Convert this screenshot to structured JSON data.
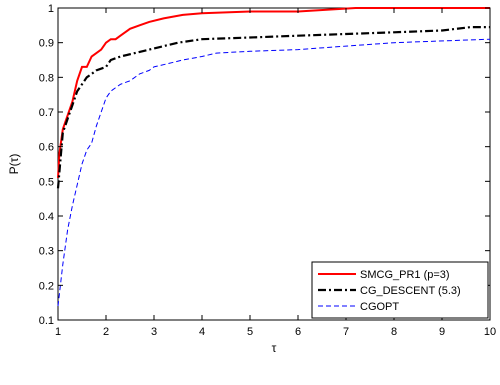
{
  "chart_data": {
    "type": "line",
    "xlabel": "τ",
    "ylabel": "P(τ)",
    "xlim": [
      1,
      10
    ],
    "ylim": [
      0.1,
      1.0
    ],
    "xticks": [
      1,
      2,
      3,
      4,
      5,
      6,
      7,
      8,
      9,
      10
    ],
    "yticks": [
      0.1,
      0.2,
      0.3,
      0.4,
      0.5,
      0.6,
      0.7,
      0.8,
      0.9,
      1
    ],
    "grid": false,
    "legend_position": "bottom-right",
    "series": [
      {
        "name": "SMCG_PR1 (p=3)",
        "color": "#ff0000",
        "style": "solid",
        "points": [
          [
            1,
            0.51
          ],
          [
            1.03,
            0.58
          ],
          [
            1.1,
            0.65
          ],
          [
            1.2,
            0.69
          ],
          [
            1.3,
            0.73
          ],
          [
            1.4,
            0.79
          ],
          [
            1.5,
            0.83
          ],
          [
            1.6,
            0.83
          ],
          [
            1.7,
            0.86
          ],
          [
            1.8,
            0.87
          ],
          [
            1.9,
            0.88
          ],
          [
            2.0,
            0.9
          ],
          [
            2.1,
            0.91
          ],
          [
            2.2,
            0.91
          ],
          [
            2.3,
            0.92
          ],
          [
            2.5,
            0.94
          ],
          [
            2.7,
            0.95
          ],
          [
            2.9,
            0.96
          ],
          [
            3.2,
            0.97
          ],
          [
            3.6,
            0.98
          ],
          [
            4.0,
            0.985
          ],
          [
            5.0,
            0.99
          ],
          [
            6.0,
            0.99
          ],
          [
            7.2,
            1.0
          ],
          [
            10,
            1.0
          ]
        ]
      },
      {
        "name": "CG_DESCENT (5.3)",
        "color": "#000000",
        "style": "dashdot",
        "points": [
          [
            1,
            0.48
          ],
          [
            1.05,
            0.56
          ],
          [
            1.1,
            0.64
          ],
          [
            1.2,
            0.68
          ],
          [
            1.3,
            0.72
          ],
          [
            1.4,
            0.76
          ],
          [
            1.5,
            0.78
          ],
          [
            1.6,
            0.8
          ],
          [
            1.7,
            0.81
          ],
          [
            1.8,
            0.82
          ],
          [
            2.0,
            0.83
          ],
          [
            2.1,
            0.85
          ],
          [
            2.3,
            0.86
          ],
          [
            2.6,
            0.87
          ],
          [
            2.9,
            0.88
          ],
          [
            3.2,
            0.89
          ],
          [
            3.5,
            0.9
          ],
          [
            4.0,
            0.91
          ],
          [
            5.0,
            0.915
          ],
          [
            6.0,
            0.92
          ],
          [
            7.0,
            0.925
          ],
          [
            8.0,
            0.93
          ],
          [
            9.0,
            0.935
          ],
          [
            9.3,
            0.94
          ],
          [
            9.6,
            0.945
          ],
          [
            10,
            0.945
          ]
        ]
      },
      {
        "name": "CGOPT",
        "color": "#0000ff",
        "style": "dashed",
        "points": [
          [
            1,
            0.14
          ],
          [
            1.05,
            0.2
          ],
          [
            1.1,
            0.26
          ],
          [
            1.2,
            0.36
          ],
          [
            1.3,
            0.43
          ],
          [
            1.4,
            0.49
          ],
          [
            1.5,
            0.55
          ],
          [
            1.6,
            0.59
          ],
          [
            1.7,
            0.61
          ],
          [
            1.8,
            0.66
          ],
          [
            1.9,
            0.7
          ],
          [
            2.0,
            0.74
          ],
          [
            2.1,
            0.76
          ],
          [
            2.2,
            0.77
          ],
          [
            2.3,
            0.78
          ],
          [
            2.5,
            0.79
          ],
          [
            2.7,
            0.81
          ],
          [
            2.9,
            0.82
          ],
          [
            3.0,
            0.83
          ],
          [
            3.3,
            0.84
          ],
          [
            3.6,
            0.85
          ],
          [
            4.0,
            0.86
          ],
          [
            4.3,
            0.87
          ],
          [
            5.0,
            0.875
          ],
          [
            6.0,
            0.88
          ],
          [
            7.0,
            0.89
          ],
          [
            8.0,
            0.9
          ],
          [
            10,
            0.91
          ]
        ]
      }
    ]
  }
}
